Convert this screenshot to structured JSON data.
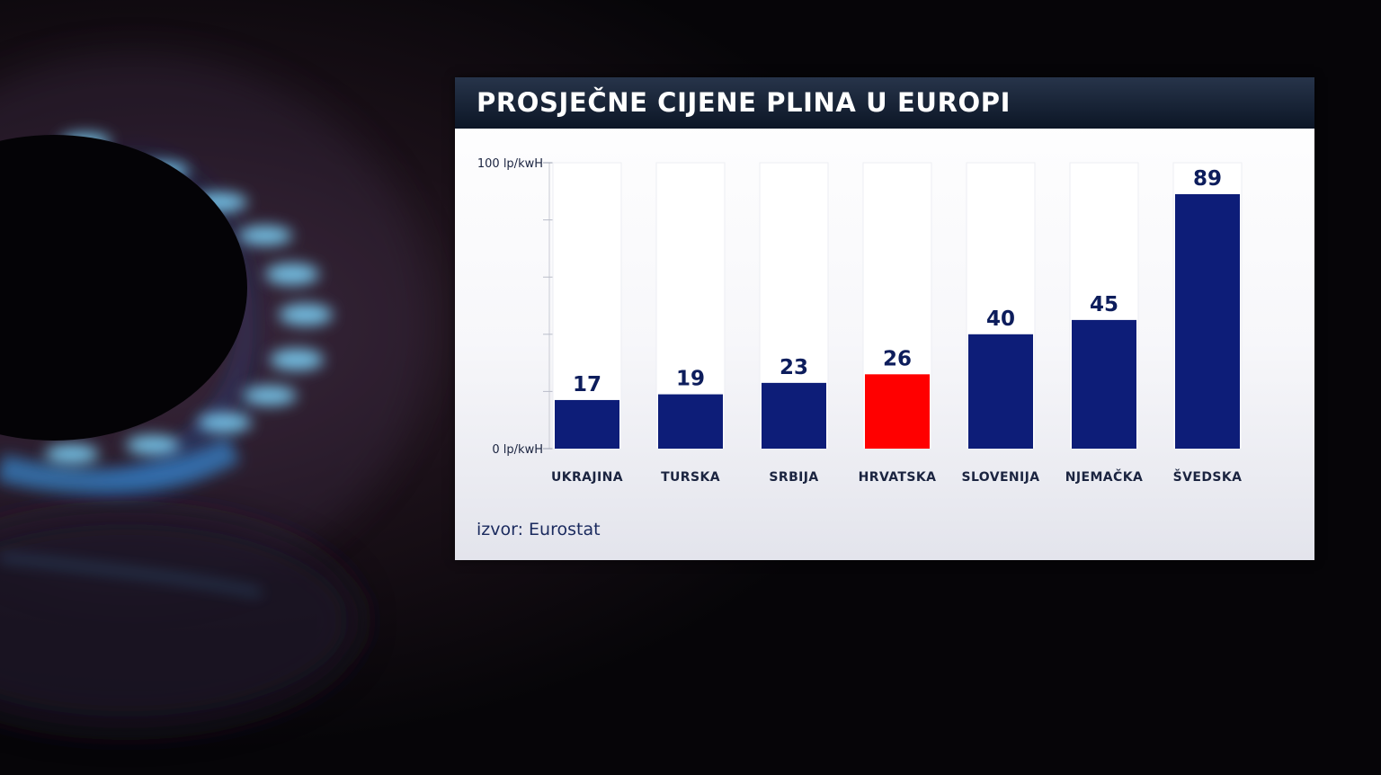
{
  "title": "PROSJEČNE CIJENE PLINA U EUROPI",
  "source": "izvor: Eurostat",
  "colors": {
    "bar": "#0d1d78",
    "highlight": "#ff0000",
    "value_label": "#0d1d5c",
    "header": "#101b2c"
  },
  "chart_data": {
    "type": "bar",
    "title": "PROSJEČNE CIJENE PLINA U EUROPI",
    "categories": [
      "UKRAJINA",
      "TURSKA",
      "SRBIJA",
      "HRVATSKA",
      "SLOVENIJA",
      "NJEMAČKA",
      "ŠVEDSKA"
    ],
    "values": [
      17,
      19,
      23,
      26,
      40,
      45,
      89
    ],
    "highlight_category": "HRVATSKA",
    "ylim": [
      0,
      100
    ],
    "y_tick_labels": [
      "0 lp/kwH",
      "100 lp/kwH"
    ],
    "y_minor_ticks": [
      20,
      40,
      60,
      80
    ],
    "xlabel": "",
    "ylabel": "",
    "grid": false,
    "legend": "none"
  }
}
